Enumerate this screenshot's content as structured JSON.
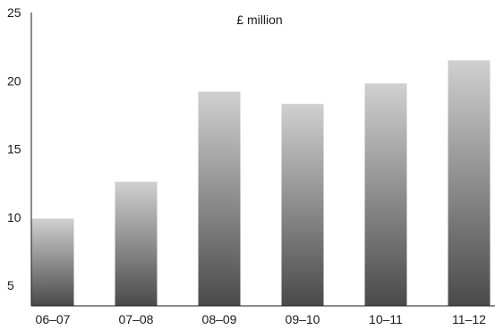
{
  "chart_data": {
    "type": "bar",
    "categories": [
      "06–07",
      "07–08",
      "08–09",
      "09–10",
      "10–11",
      "11–12"
    ],
    "values": [
      9.9,
      12.6,
      19.2,
      18.3,
      19.8,
      21.5
    ],
    "ylim": [
      3.5,
      25
    ],
    "yticks": [
      5,
      10,
      15,
      20,
      25
    ],
    "unit_label": "£ million",
    "title": "",
    "xlabel": "",
    "ylabel": "",
    "grid": false,
    "bar_gradient": {
      "top": "#d0d0d0",
      "bottom": "#4a4a4a"
    }
  }
}
